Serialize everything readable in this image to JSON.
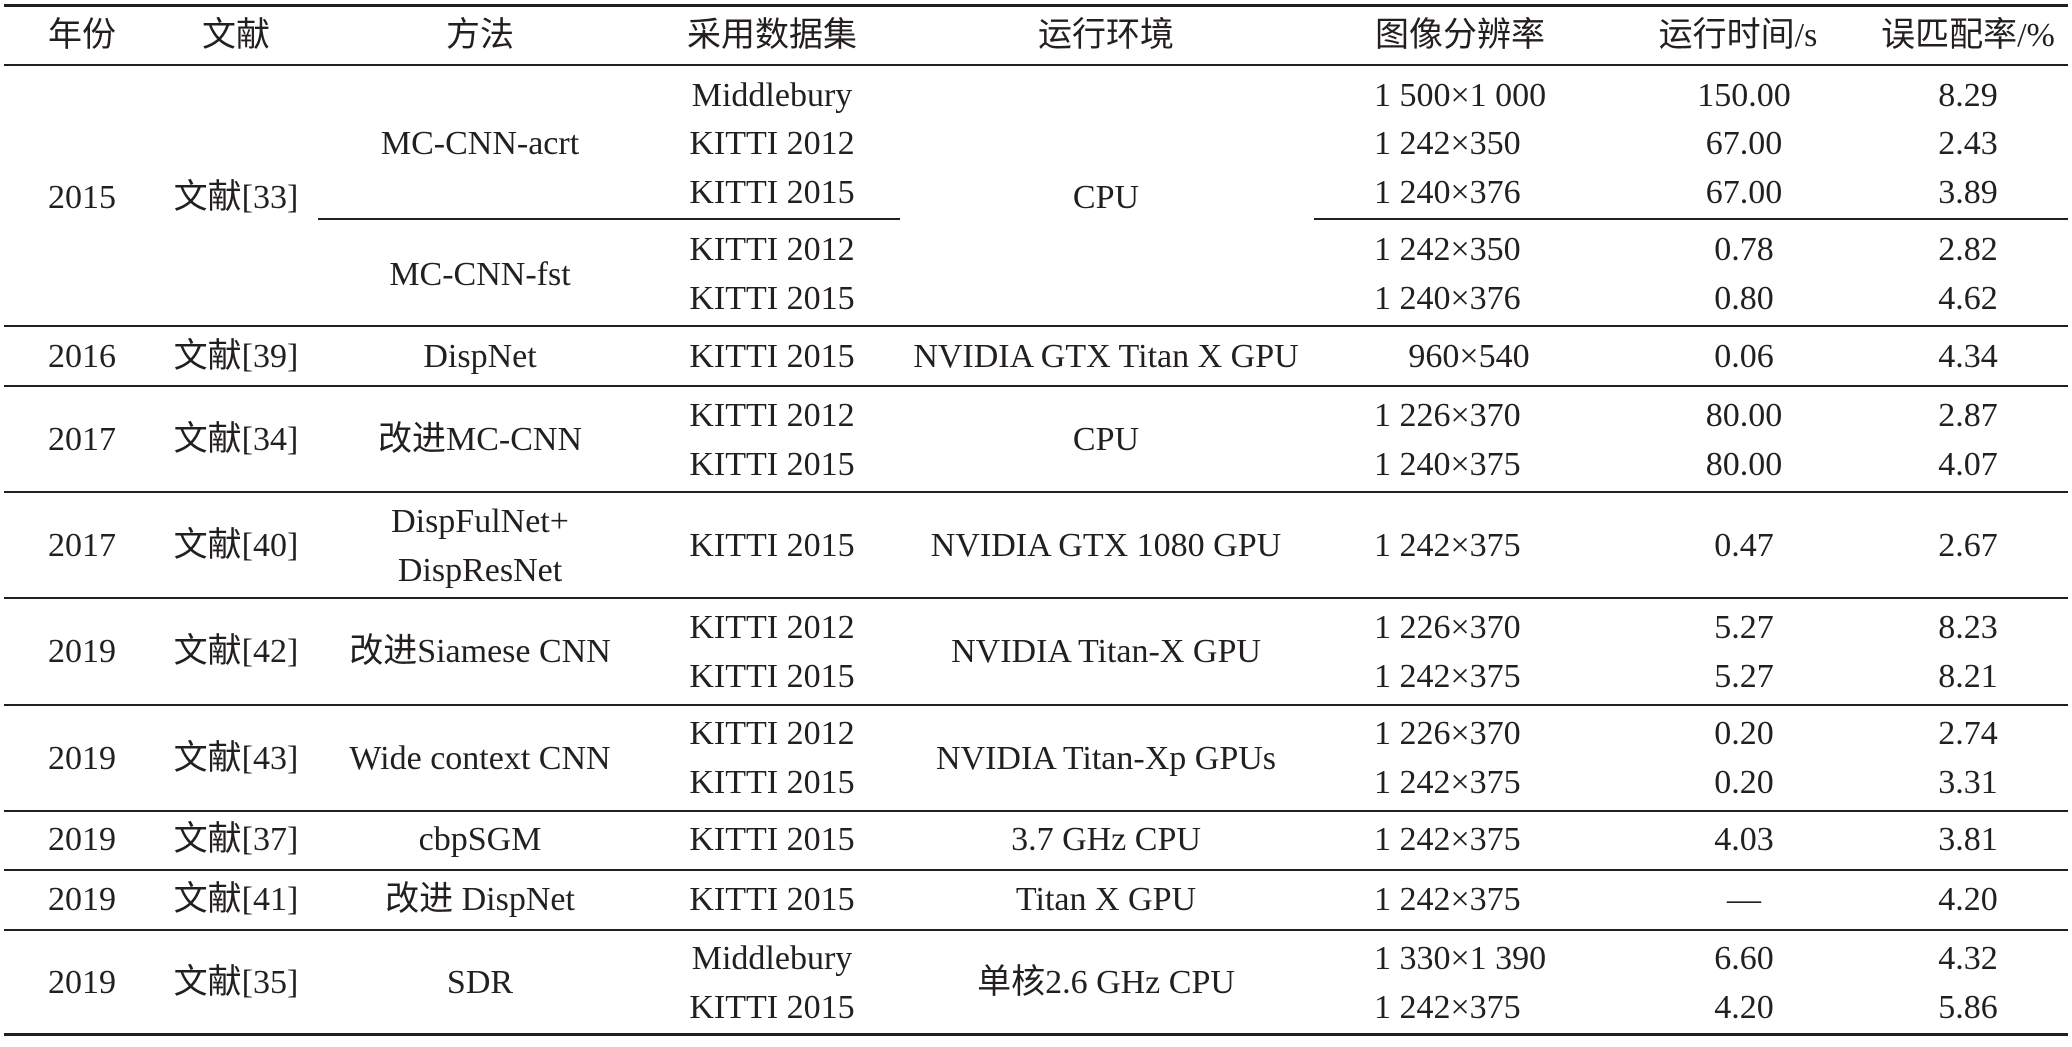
{
  "headers": [
    "年份",
    "文献",
    "方法",
    "采用数据集",
    "运行环境",
    "图像分辨率",
    "运行时间/s",
    "误匹配率/%"
  ],
  "groups": [
    {
      "year": "2015",
      "ref": "文献[33]",
      "methods": [
        {
          "name": "MC-CNN-acrt",
          "env": "CPU",
          "rows": [
            {
              "dataset": "Middlebury",
              "resolution": "1 500×1 000",
              "time": "150.00",
              "error": "8.29"
            },
            {
              "dataset": "KITTI 2012",
              "resolution": "1 242×350",
              "time": "67.00",
              "error": "2.43"
            },
            {
              "dataset": "KITTI 2015",
              "resolution": "1 240×376",
              "time": "67.00",
              "error": "3.89"
            }
          ]
        },
        {
          "name": "MC-CNN-fst",
          "env": "",
          "rows": [
            {
              "dataset": "KITTI 2012",
              "resolution": "1 242×350",
              "time": "0.78",
              "error": "2.82"
            },
            {
              "dataset": "KITTI 2015",
              "resolution": "1 240×376",
              "time": "0.80",
              "error": "4.62"
            }
          ]
        }
      ]
    },
    {
      "year": "2016",
      "ref": "文献[39]",
      "methods": [
        {
          "name": "DispNet",
          "env": "NVIDIA GTX Titan X GPU",
          "rows": [
            {
              "dataset": "KITTI 2015",
              "resolution": "960×540",
              "time": "0.06",
              "error": "4.34"
            }
          ]
        }
      ]
    },
    {
      "year": "2017",
      "ref": "文献[34]",
      "methods": [
        {
          "name": "改进MC-CNN",
          "env": "CPU",
          "rows": [
            {
              "dataset": "KITTI 2012",
              "resolution": "1 226×370",
              "time": "80.00",
              "error": "2.87"
            },
            {
              "dataset": "KITTI 2015",
              "resolution": "1 240×375",
              "time": "80.00",
              "error": "4.07"
            }
          ]
        }
      ]
    },
    {
      "year": "2017",
      "ref": "文献[40]",
      "methods": [
        {
          "name": "DispFulNet+",
          "name2": "DispResNet",
          "env": "NVIDIA GTX 1080 GPU",
          "rows": [
            {
              "dataset": "KITTI 2015",
              "resolution": "1 242×375",
              "time": "0.47",
              "error": "2.67"
            }
          ]
        }
      ]
    },
    {
      "year": "2019",
      "ref": "文献[42]",
      "methods": [
        {
          "name": "改进Siamese CNN",
          "env": "NVIDIA Titan-X GPU",
          "rows": [
            {
              "dataset": "KITTI 2012",
              "resolution": "1 226×370",
              "time": "5.27",
              "error": "8.23"
            },
            {
              "dataset": "KITTI 2015",
              "resolution": "1 242×375",
              "time": "5.27",
              "error": "8.21"
            }
          ]
        }
      ]
    },
    {
      "year": "2019",
      "ref": "文献[43]",
      "methods": [
        {
          "name": "Wide context CNN",
          "env": "NVIDIA Titan-Xp GPUs",
          "rows": [
            {
              "dataset": "KITTI 2012",
              "resolution": "1 226×370",
              "time": "0.20",
              "error": "2.74"
            },
            {
              "dataset": "KITTI 2015",
              "resolution": "1 242×375",
              "time": "0.20",
              "error": "3.31"
            }
          ]
        }
      ]
    },
    {
      "year": "2019",
      "ref": "文献[37]",
      "methods": [
        {
          "name": "cbpSGM",
          "env": "3.7 GHz CPU",
          "rows": [
            {
              "dataset": "KITTI 2015",
              "resolution": "1 242×375",
              "time": "4.03",
              "error": "3.81"
            }
          ]
        }
      ]
    },
    {
      "year": "2019",
      "ref": "文献[41]",
      "methods": [
        {
          "name": "改进 DispNet",
          "env": "Titan X GPU",
          "rows": [
            {
              "dataset": "KITTI 2015",
              "resolution": "1 242×375",
              "time": "—",
              "error": "4.20"
            }
          ]
        }
      ]
    },
    {
      "year": "2019",
      "ref": "文献[35]",
      "methods": [
        {
          "name": "SDR",
          "env": "单核2.6 GHz CPU",
          "rows": [
            {
              "dataset": "Middlebury",
              "resolution": "1 330×1 390",
              "time": "6.60",
              "error": "4.32"
            },
            {
              "dataset": "KITTI 2015",
              "resolution": "1 242×375",
              "time": "4.20",
              "error": "5.86"
            }
          ]
        }
      ]
    }
  ]
}
